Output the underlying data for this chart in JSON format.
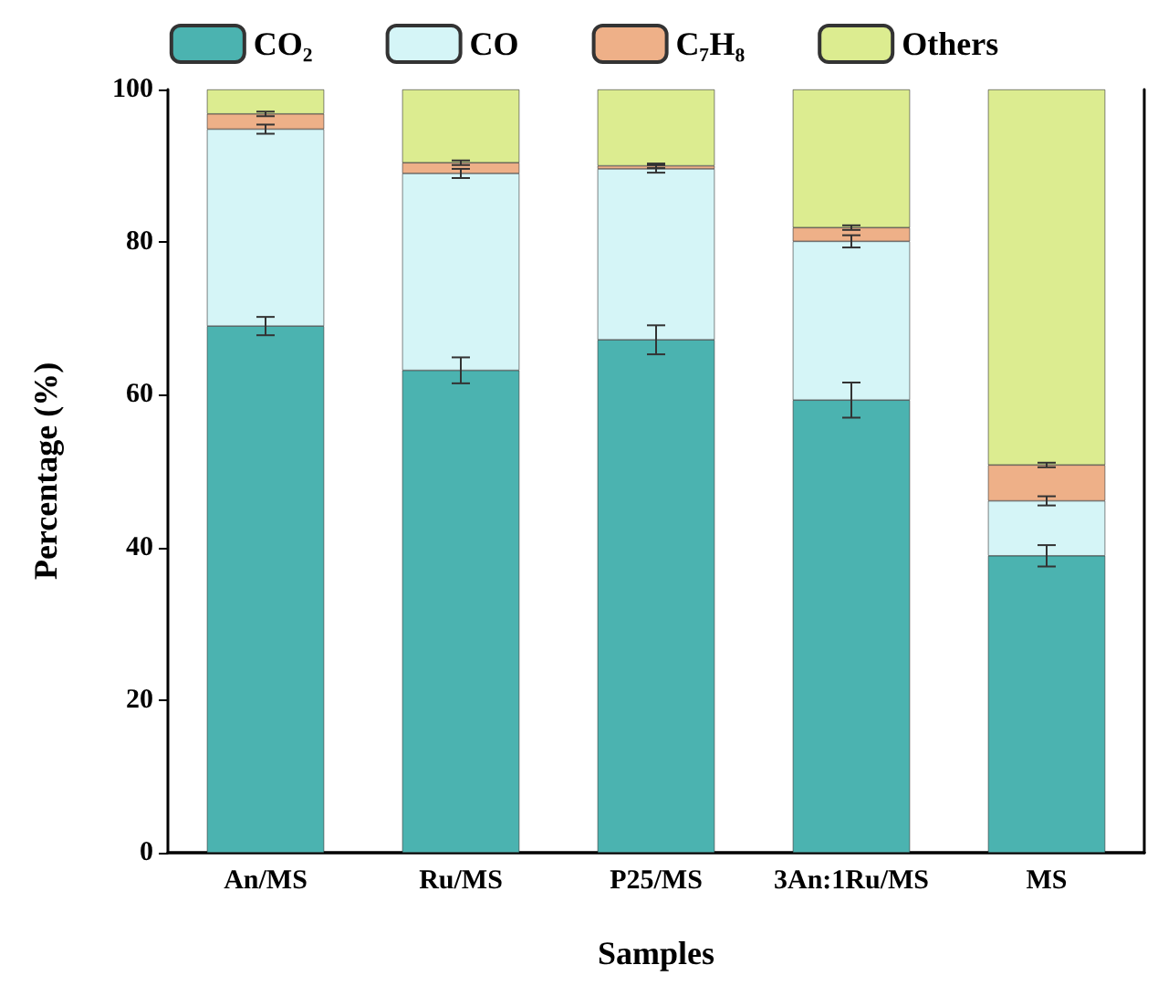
{
  "chart_data": {
    "type": "bar",
    "stacked": true,
    "xlabel": "Samples",
    "ylabel": "Percentage (%)",
    "categories": [
      "An/MS",
      "Ru/MS",
      "P25/MS",
      "3An:1Ru/MS",
      "MS"
    ],
    "series": [
      {
        "name": "CO₂",
        "color": "#4bb3b0",
        "values": [
          69,
          63.2,
          67.2,
          59.3,
          38.9
        ],
        "errors": [
          1.2,
          1.7,
          1.9,
          2.3,
          1.4
        ]
      },
      {
        "name": "CO",
        "color": "#d5f5f7",
        "values": [
          25.8,
          25.8,
          22.4,
          20.8,
          7.2
        ],
        "errors": [
          0.6,
          0.6,
          0.5,
          0.8,
          0.6
        ]
      },
      {
        "name": "C₇H₈",
        "color": "#eeb088",
        "values": [
          2,
          1.4,
          0.4,
          1.8,
          4.7
        ],
        "errors": [
          0.3,
          0.3,
          0.3,
          0.3,
          0.3
        ]
      },
      {
        "name": "Others",
        "color": "#dcec90",
        "values": [
          3.2,
          9.6,
          10,
          18.1,
          49.2
        ]
      }
    ],
    "ylim": [
      0,
      100
    ],
    "yticks": [
      0,
      20,
      40,
      60,
      80,
      100
    ],
    "legend": "top",
    "grid": false
  }
}
